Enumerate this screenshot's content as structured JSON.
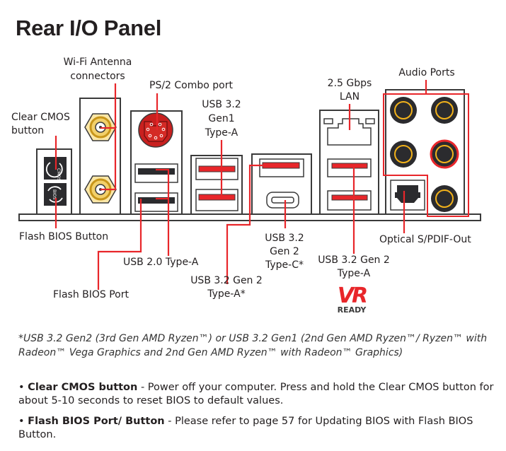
{
  "title": "Rear I/O Panel",
  "labels": {
    "wifi": [
      "Wi-Fi Antenna",
      "connectors"
    ],
    "ps2": "PS/2 Combo port",
    "clear_cmos": [
      "Clear CMOS",
      "button"
    ],
    "usb32_gen1": [
      "USB 3.2",
      "Gen1",
      "Type-A"
    ],
    "lan": [
      "2.5 Gbps",
      "LAN"
    ],
    "audio": "Audio Ports",
    "flash_bios_button": "Flash BIOS Button",
    "usb20": "USB 2.0 Type-A",
    "flash_bios_port": "Flash BIOS Port",
    "usb32_gen2_a_star": [
      "USB 3.2 Gen 2",
      "Type-A*"
    ],
    "usb32_gen2_c": [
      "USB 3.2",
      "Gen 2",
      "Type-C*"
    ],
    "usb32_gen2_a": [
      "USB 3.2 Gen 2",
      "Type-A"
    ],
    "optical": "Optical S/PDIF-Out",
    "cmos_icon_text": "CMOS",
    "bios_icon_text": "BIOS"
  },
  "logo": {
    "line1": "VR",
    "line2": "READY"
  },
  "footnote": "*USB 3.2 Gen2 (3rd Gen AMD Ryzen™) or USB 3.2 Gen1 (2nd Gen AMD Ryzen™/ Ryzen™ with Radeon™ Vega Graphics and 2nd Gen AMD Ryzen™ with Radeon™ Graphics)",
  "bullets": [
    {
      "term": "Clear CMOS button",
      "text": " - Power off your computer. Press and hold the Clear CMOS button for about 5-10 seconds to reset BIOS to default values."
    },
    {
      "term": "Flash BIOS Port/ Button",
      "text": " - Please refer to page 57 for Updating BIOS with Flash BIOS Button."
    }
  ],
  "colors": {
    "accent_red": "#e8262a",
    "port_dark": "#2b2b2e",
    "gold": "#f2b21b",
    "outline": "#3a3a3a"
  }
}
